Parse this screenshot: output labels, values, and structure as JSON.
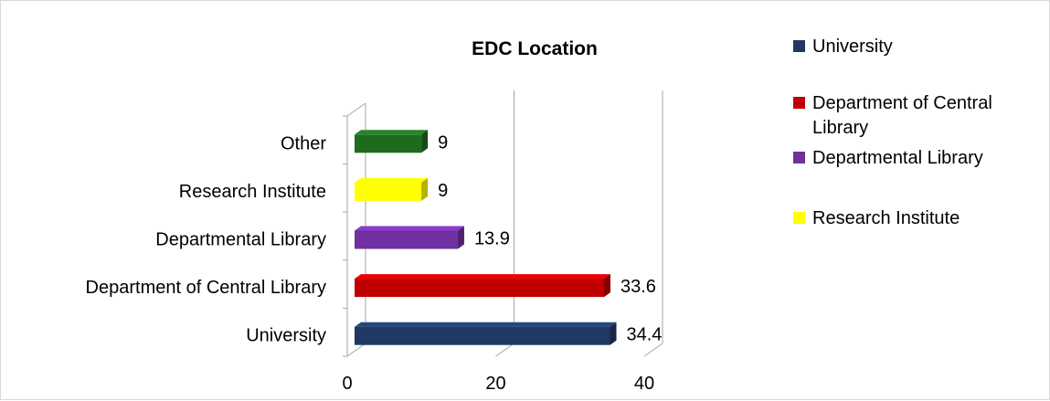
{
  "chart_data": {
    "type": "bar",
    "orientation": "horizontal",
    "title": "EDC Location",
    "xlabel": "",
    "ylabel": "",
    "xlim": [
      0,
      40
    ],
    "x_ticks": [
      0,
      20,
      40
    ],
    "x_tick_labels": [
      "0",
      "20",
      "40"
    ],
    "categories": [
      "University",
      "Department of Central Library",
      "Departmental Library",
      "Research Institute",
      "Other"
    ],
    "values": [
      34.4,
      33.6,
      13.9,
      9,
      9
    ],
    "value_labels": [
      "34.4",
      "33.6",
      "13.9",
      "9",
      "9"
    ],
    "bar_colors": [
      "#1f3864",
      "#c00000",
      "#7030a0",
      "#ffff00",
      "#1e6b1e"
    ],
    "grid": "vertical gridlines",
    "legend_position": "right",
    "legend": [
      {
        "label": "University",
        "color": "#1f3864"
      },
      {
        "label": "Department of Central Library",
        "color": "#c00000"
      },
      {
        "label": "Departmental Library",
        "color": "#7030a0"
      },
      {
        "label": "Research Institute",
        "color": "#ffff00"
      }
    ]
  }
}
